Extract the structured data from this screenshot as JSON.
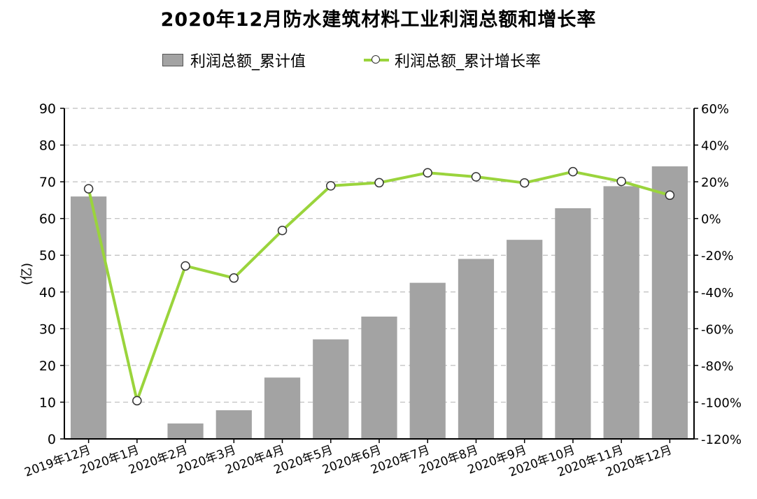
{
  "chart_data": {
    "type": "bar+line",
    "title": "2020年12月防水建筑材料工业利润总额和增长率",
    "categories": [
      "2019年12月",
      "2020年1月",
      "2020年2月",
      "2020年3月",
      "2020年4月",
      "2020年5月",
      "2020年6月",
      "2020年7月",
      "2020年8月",
      "2020年9月",
      "2020年10月",
      "2020年11月",
      "2020年12月"
    ],
    "series": [
      {
        "name": "利润总额_累计值",
        "type": "bar",
        "axis": "left",
        "color": "#a3a3a3",
        "values": [
          66,
          null,
          4.2,
          7.8,
          16.7,
          27.1,
          33.3,
          42.5,
          49.0,
          54.2,
          62.8,
          68.8,
          74.2
        ]
      },
      {
        "name": "利润总额_累计增长率",
        "type": "line",
        "axis": "right",
        "color": "#9ad43c",
        "values": [
          16.2,
          -99.2,
          -25.8,
          -32.4,
          -6.5,
          17.8,
          19.5,
          24.9,
          22.7,
          19.4,
          25.5,
          20.2,
          12.7
        ]
      }
    ],
    "ylabel": "(亿)",
    "ylim": [
      0,
      90
    ],
    "yticks": [
      "0",
      "10",
      "20",
      "30",
      "40",
      "50",
      "60",
      "70",
      "80",
      "90"
    ],
    "y2lim": [
      -120,
      60
    ],
    "y2ticks": [
      "-120%",
      "-100%",
      "-80%",
      "-60%",
      "-40%",
      "-20%",
      "0%",
      "20%",
      "40%",
      "60%"
    ],
    "grid": true,
    "legend_position": "top"
  }
}
